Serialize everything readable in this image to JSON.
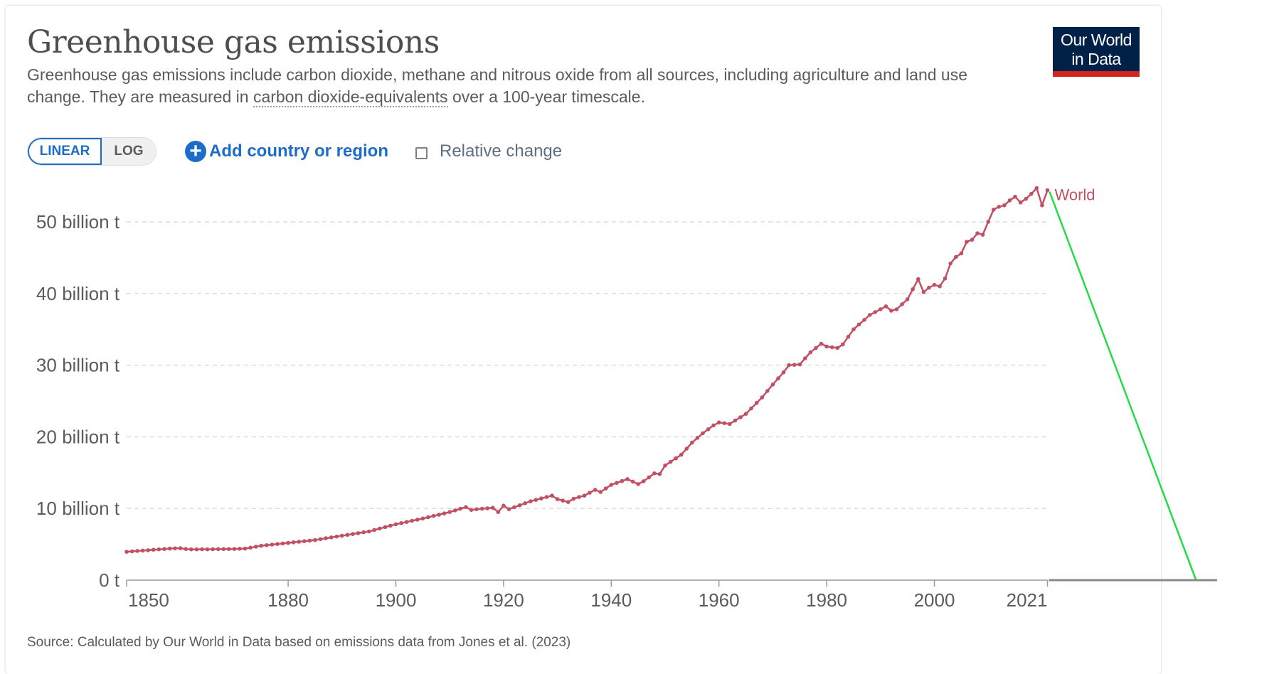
{
  "header": {
    "title": "Greenhouse gas emissions",
    "subtitle_part1": "Greenhouse gas emissions include carbon dioxide, methane and nitrous oxide from all sources, including agriculture and land use change. They are measured in ",
    "subtitle_link": "carbon dioxide-equivalents",
    "subtitle_part2": " over a 100-year timescale."
  },
  "logo": {
    "line1": "Our World",
    "line2": "in Data",
    "bg_color": "#002147",
    "accent_color": "#ce261e"
  },
  "controls": {
    "scale_options": [
      {
        "label": "LINEAR",
        "active": true
      },
      {
        "label": "LOG",
        "active": false
      }
    ],
    "add_label": "Add country or region",
    "add_icon": "plus-circle-icon",
    "relative_change_label": "Relative change",
    "relative_change_checked": false
  },
  "footer": {
    "source": "Source: Calculated by Our World in Data based on emissions data from Jones et al. (2023)"
  },
  "colors": {
    "series": "#c15065",
    "annotation": "#22dd44",
    "link": "#1d6cc9"
  },
  "chart_data": {
    "type": "line",
    "title": "Greenhouse gas emissions",
    "xlabel": "",
    "ylabel": "",
    "xlim": [
      1850,
      2021
    ],
    "ylim": [
      0,
      55
    ],
    "y_unit": "billion t",
    "x_ticks": [
      "1850",
      "1880",
      "1900",
      "1920",
      "1940",
      "1960",
      "1980",
      "2000",
      "2021"
    ],
    "y_ticks": [
      {
        "value": 0,
        "label": "0 t"
      },
      {
        "value": 10,
        "label": "10 billion t"
      },
      {
        "value": 20,
        "label": "20 billion t"
      },
      {
        "value": 30,
        "label": "30 billion t"
      },
      {
        "value": 40,
        "label": "40 billion t"
      },
      {
        "value": 50,
        "label": "50 billion t"
      }
    ],
    "grid": "horizontal-dashed",
    "legend": "inline-end-label",
    "x_start": 1850,
    "series": [
      {
        "name": "World",
        "values": [
          3.96,
          4.02,
          4.08,
          4.13,
          4.18,
          4.25,
          4.3,
          4.35,
          4.4,
          4.43,
          4.45,
          4.35,
          4.3,
          4.3,
          4.32,
          4.3,
          4.32,
          4.33,
          4.34,
          4.35,
          4.35,
          4.38,
          4.4,
          4.53,
          4.67,
          4.8,
          4.88,
          4.96,
          5.04,
          5.12,
          5.2,
          5.28,
          5.36,
          5.44,
          5.52,
          5.6,
          5.72,
          5.84,
          5.96,
          6.08,
          6.2,
          6.32,
          6.44,
          6.56,
          6.68,
          6.8,
          7.0,
          7.2,
          7.4,
          7.6,
          7.8,
          7.96,
          8.12,
          8.28,
          8.44,
          8.6,
          8.78,
          8.96,
          9.14,
          9.32,
          9.5,
          9.73,
          9.97,
          10.2,
          9.8,
          9.9,
          9.97,
          10.03,
          10.1,
          9.5,
          10.4,
          9.9,
          10.18,
          10.45,
          10.73,
          11.0,
          11.2,
          11.4,
          11.6,
          11.8,
          11.3,
          11.1,
          10.9,
          11.35,
          11.6,
          11.8,
          12.2,
          12.6,
          12.3,
          12.8,
          13.3,
          13.57,
          13.83,
          14.1,
          13.75,
          13.4,
          13.8,
          14.35,
          14.9,
          14.8,
          16.0,
          16.5,
          17.0,
          17.5,
          18.35,
          19.2,
          19.85,
          20.5,
          21.05,
          21.6,
          22.0,
          21.9,
          21.8,
          22.27,
          22.73,
          23.2,
          23.97,
          24.73,
          25.5,
          26.4,
          27.3,
          28.15,
          29.0,
          30.0,
          30.05,
          30.1,
          30.95,
          31.8,
          32.4,
          33.0,
          32.6,
          32.5,
          32.4,
          32.9,
          33.95,
          35.0,
          35.67,
          36.33,
          37.0,
          37.4,
          37.8,
          38.2,
          37.6,
          37.8,
          38.5,
          39.2,
          40.6,
          42.0,
          40.2,
          40.8,
          41.2,
          41.0,
          42.1,
          44.2,
          45.1,
          45.6,
          47.2,
          47.5,
          48.4,
          48.2,
          50.0,
          51.7,
          52.1,
          52.3,
          53.0,
          53.5,
          52.7,
          53.2,
          53.9,
          54.7,
          52.3,
          54.4
        ]
      }
    ],
    "annotations": [
      {
        "type": "line",
        "from": {
          "x": 2021,
          "y": 54.4
        },
        "to": {
          "x": 2048.6,
          "y": 0
        },
        "color": "#22dd44"
      },
      {
        "type": "axis-extension",
        "from_x": 2021,
        "to_x": 2052.5,
        "y": 0
      }
    ]
  }
}
